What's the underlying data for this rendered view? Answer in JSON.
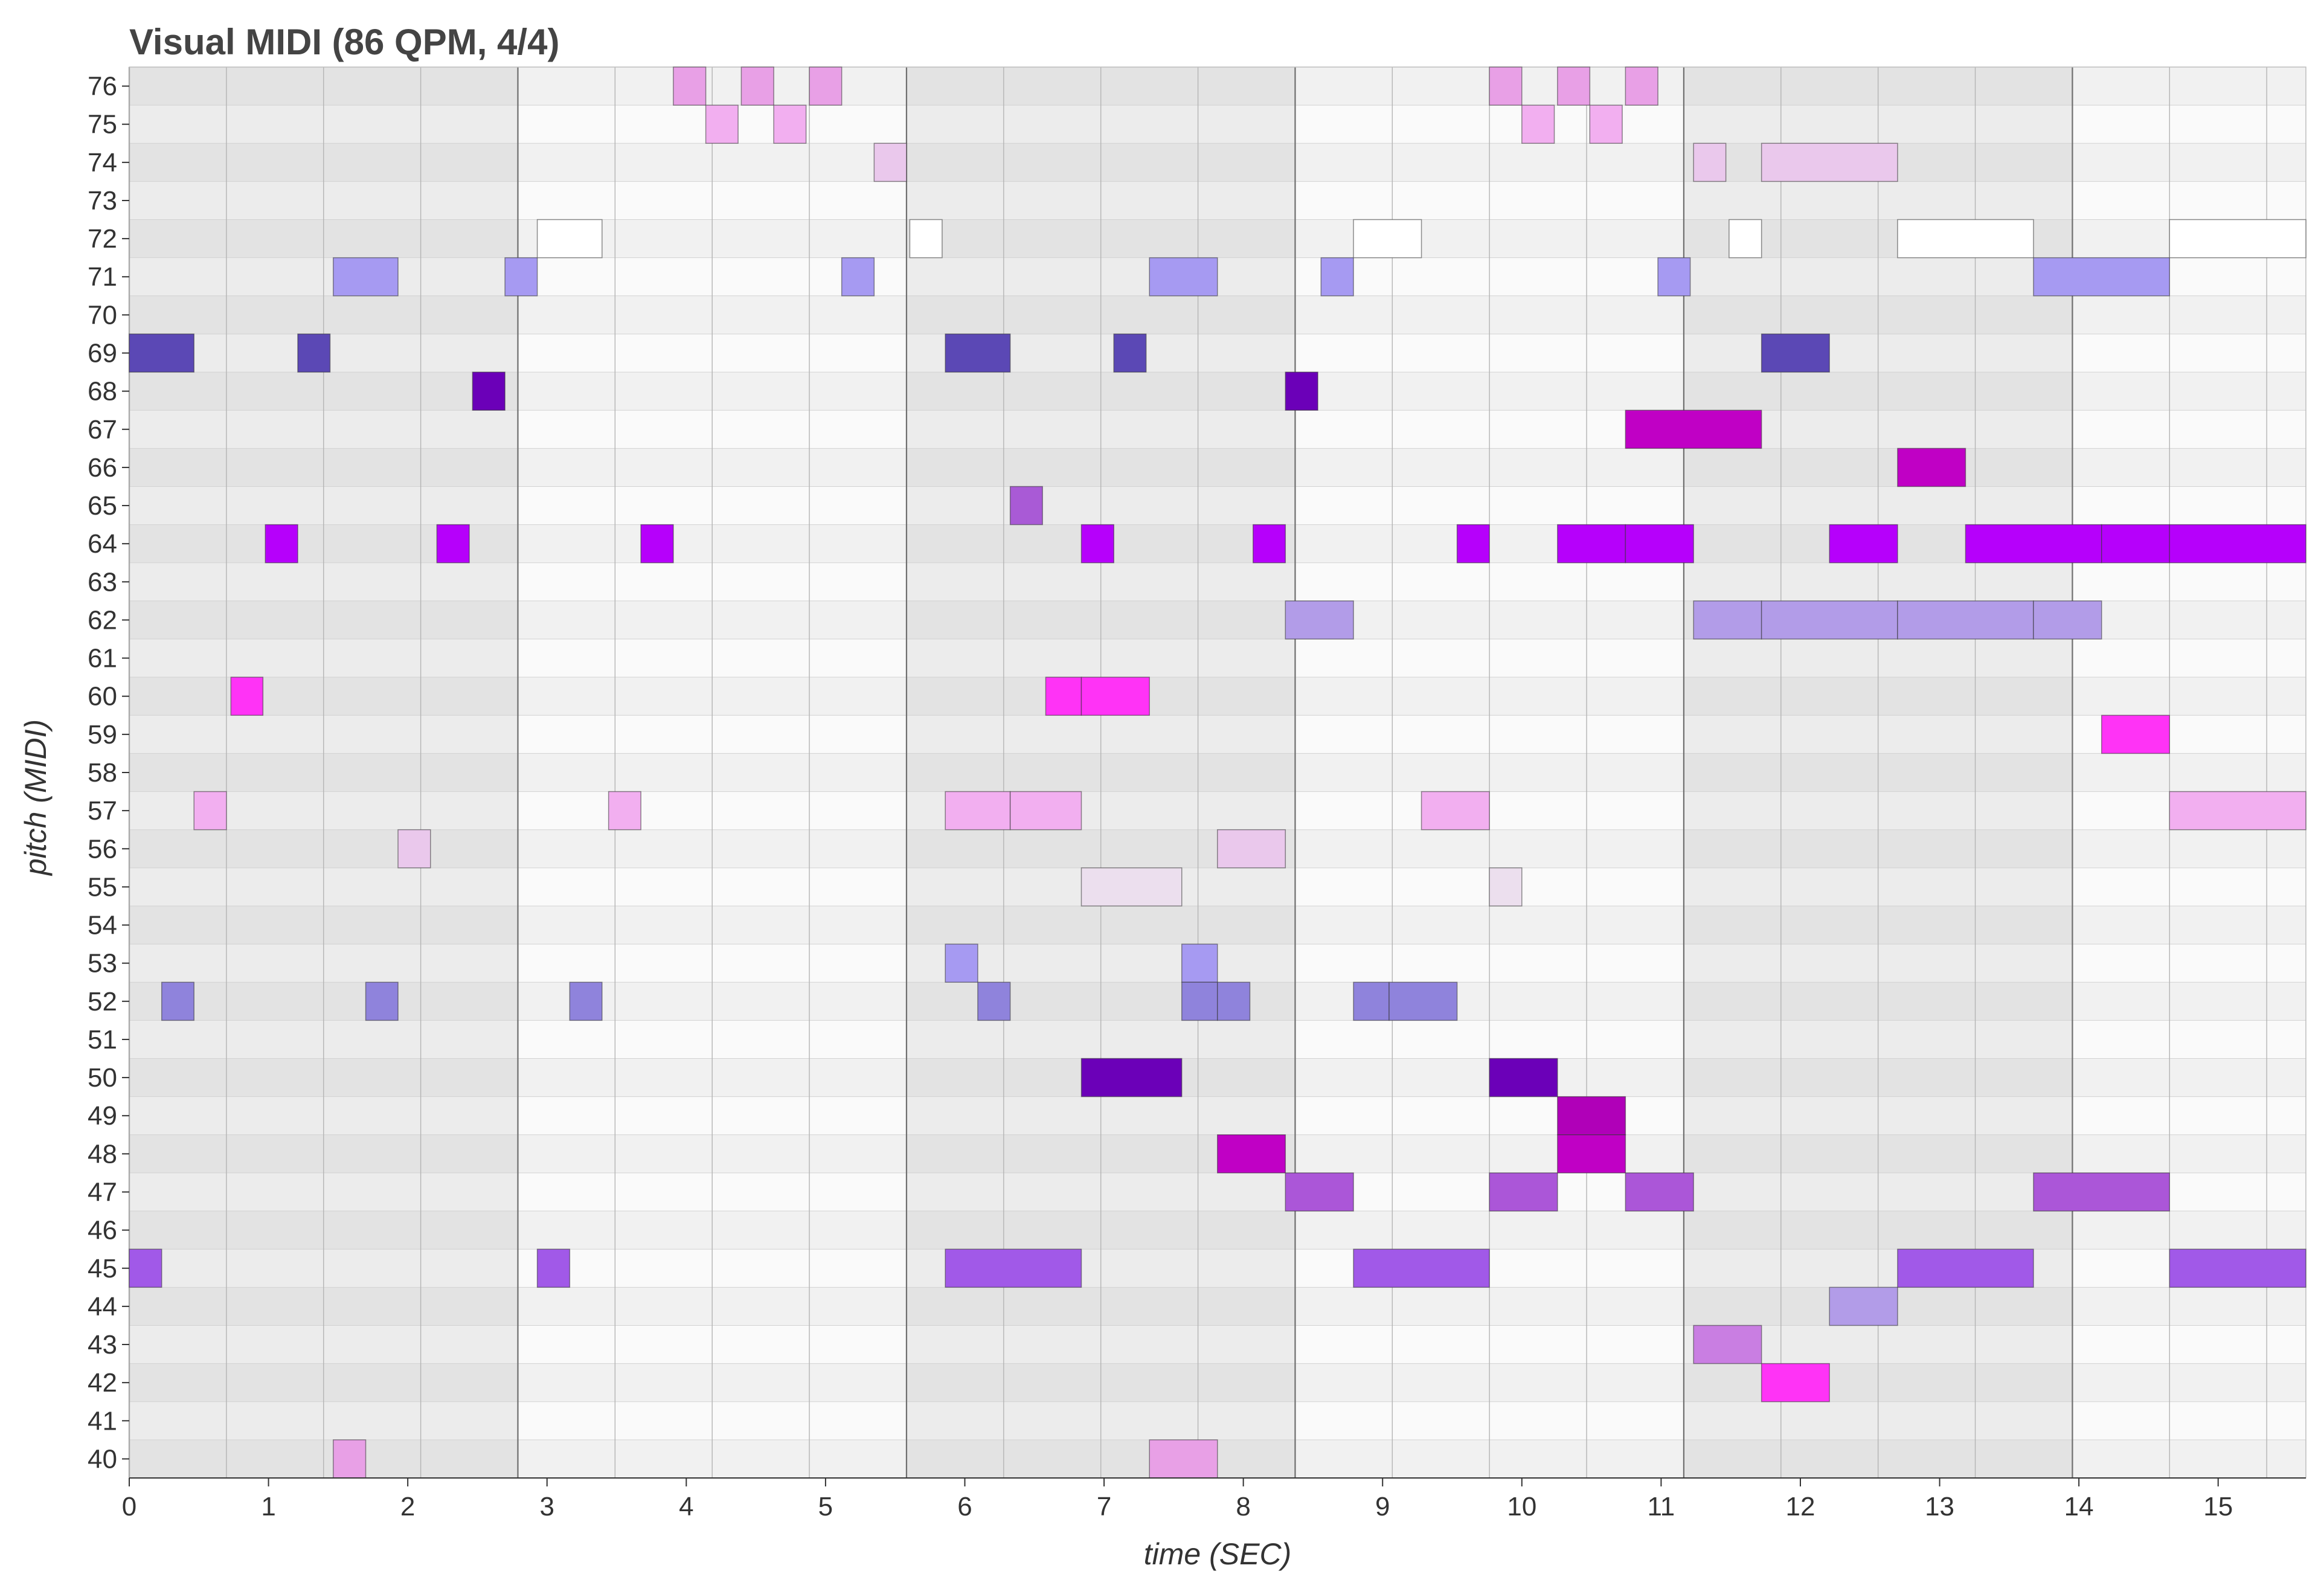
{
  "chart_data": {
    "type": "piano-roll",
    "title": "Visual MIDI (86 QPM, 4/4)",
    "xlabel": "time (SEC)",
    "ylabel": "pitch (MIDI)",
    "xlim": [
      0,
      15.63
    ],
    "ylim": [
      40,
      76
    ],
    "bar_length_sec": 2.7907,
    "x_ticks": [
      0,
      1,
      2,
      3,
      4,
      5,
      6,
      7,
      8,
      9,
      10,
      11,
      12,
      13,
      14,
      15
    ],
    "y_ticks": [
      40,
      41,
      42,
      43,
      44,
      45,
      46,
      47,
      48,
      49,
      50,
      51,
      52,
      53,
      54,
      55,
      56,
      57,
      58,
      59,
      60,
      61,
      62,
      63,
      64,
      65,
      66,
      67,
      68,
      69,
      70,
      71,
      72,
      73,
      74,
      75,
      76
    ],
    "notes": [
      {
        "pitch": 69,
        "start": 0.0,
        "end": 0.465,
        "color": "#5b48b5"
      },
      {
        "pitch": 45,
        "start": 0.0,
        "end": 0.233,
        "color": "#a159e8"
      },
      {
        "pitch": 52,
        "start": 0.233,
        "end": 0.465,
        "color": "#8f83dc"
      },
      {
        "pitch": 57,
        "start": 0.465,
        "end": 0.698,
        "color": "#f2aff0"
      },
      {
        "pitch": 60,
        "start": 0.73,
        "end": 0.96,
        "color": "#ff33f6"
      },
      {
        "pitch": 64,
        "start": 0.977,
        "end": 1.21,
        "color": "#b600fb"
      },
      {
        "pitch": 69,
        "start": 1.21,
        "end": 1.442,
        "color": "#5b48b5"
      },
      {
        "pitch": 71,
        "start": 1.465,
        "end": 1.93,
        "color": "#a69af2"
      },
      {
        "pitch": 40,
        "start": 1.465,
        "end": 1.698,
        "color": "#e8a0e6"
      },
      {
        "pitch": 52,
        "start": 1.698,
        "end": 1.93,
        "color": "#8f83dc"
      },
      {
        "pitch": 56,
        "start": 1.93,
        "end": 2.163,
        "color": "#eac8ec"
      },
      {
        "pitch": 64,
        "start": 2.209,
        "end": 2.442,
        "color": "#b600fb"
      },
      {
        "pitch": 68,
        "start": 2.465,
        "end": 2.698,
        "color": "#6b00b8"
      },
      {
        "pitch": 71,
        "start": 2.698,
        "end": 2.93,
        "color": "#a69af2"
      },
      {
        "pitch": 72,
        "start": 2.93,
        "end": 3.395,
        "color": "#ffffff"
      },
      {
        "pitch": 45,
        "start": 2.93,
        "end": 3.163,
        "color": "#a159e8"
      },
      {
        "pitch": 52,
        "start": 3.163,
        "end": 3.395,
        "color": "#8f83dc"
      },
      {
        "pitch": 57,
        "start": 3.442,
        "end": 3.674,
        "color": "#f2aff0"
      },
      {
        "pitch": 64,
        "start": 3.674,
        "end": 3.907,
        "color": "#b600fb"
      },
      {
        "pitch": 76,
        "start": 3.907,
        "end": 4.14,
        "color": "#e8a0e6"
      },
      {
        "pitch": 75,
        "start": 4.14,
        "end": 4.372,
        "color": "#f2aff0"
      },
      {
        "pitch": 76,
        "start": 4.395,
        "end": 4.628,
        "color": "#e8a0e6"
      },
      {
        "pitch": 75,
        "start": 4.628,
        "end": 4.86,
        "color": "#f2aff0"
      },
      {
        "pitch": 76,
        "start": 4.884,
        "end": 5.116,
        "color": "#e8a0e6"
      },
      {
        "pitch": 71,
        "start": 5.116,
        "end": 5.349,
        "color": "#a69af2"
      },
      {
        "pitch": 74,
        "start": 5.349,
        "end": 5.581,
        "color": "#eac8ec"
      },
      {
        "pitch": 72,
        "start": 5.605,
        "end": 5.837,
        "color": "#ffffff"
      },
      {
        "pitch": 69,
        "start": 5.86,
        "end": 6.326,
        "color": "#5b48b5"
      },
      {
        "pitch": 57,
        "start": 5.86,
        "end": 6.326,
        "color": "#f2aff0"
      },
      {
        "pitch": 53,
        "start": 5.86,
        "end": 6.093,
        "color": "#a69af2"
      },
      {
        "pitch": 45,
        "start": 5.86,
        "end": 6.837,
        "color": "#a159e8"
      },
      {
        "pitch": 52,
        "start": 6.093,
        "end": 6.326,
        "color": "#8f83dc"
      },
      {
        "pitch": 57,
        "start": 6.326,
        "end": 6.837,
        "color": "#f2aff0"
      },
      {
        "pitch": 65,
        "start": 6.326,
        "end": 6.558,
        "color": "#a95ad6"
      },
      {
        "pitch": 60,
        "start": 6.581,
        "end": 6.837,
        "color": "#ff33f6"
      },
      {
        "pitch": 64,
        "start": 6.837,
        "end": 7.07,
        "color": "#b600fb"
      },
      {
        "pitch": 60,
        "start": 6.837,
        "end": 7.326,
        "color": "#ff33f6"
      },
      {
        "pitch": 55,
        "start": 6.837,
        "end": 7.558,
        "color": "#ecdfee"
      },
      {
        "pitch": 50,
        "start": 6.837,
        "end": 7.558,
        "color": "#6b00b8"
      },
      {
        "pitch": 69,
        "start": 7.07,
        "end": 7.302,
        "color": "#5b48b5"
      },
      {
        "pitch": 71,
        "start": 7.326,
        "end": 7.814,
        "color": "#a69af2"
      },
      {
        "pitch": 40,
        "start": 7.326,
        "end": 7.814,
        "color": "#e8a0e6"
      },
      {
        "pitch": 53,
        "start": 7.558,
        "end": 7.814,
        "color": "#a69af2"
      },
      {
        "pitch": 52,
        "start": 7.558,
        "end": 7.814,
        "color": "#8f83dc"
      },
      {
        "pitch": 52,
        "start": 7.814,
        "end": 8.047,
        "color": "#8f83dc"
      },
      {
        "pitch": 56,
        "start": 7.814,
        "end": 8.302,
        "color": "#eac8ec"
      },
      {
        "pitch": 48,
        "start": 7.814,
        "end": 8.302,
        "color": "#c000c5"
      },
      {
        "pitch": 64,
        "start": 8.07,
        "end": 8.302,
        "color": "#b600fb"
      },
      {
        "pitch": 68,
        "start": 8.302,
        "end": 8.535,
        "color": "#6b00b8"
      },
      {
        "pitch": 62,
        "start": 8.302,
        "end": 8.791,
        "color": "#b29ce8"
      },
      {
        "pitch": 47,
        "start": 8.302,
        "end": 8.791,
        "color": "#ab56d8"
      },
      {
        "pitch": 71,
        "start": 8.558,
        "end": 8.791,
        "color": "#a69af2"
      },
      {
        "pitch": 72,
        "start": 8.791,
        "end": 9.279,
        "color": "#ffffff"
      },
      {
        "pitch": 52,
        "start": 8.791,
        "end": 9.047,
        "color": "#8f83dc"
      },
      {
        "pitch": 45,
        "start": 8.791,
        "end": 9.767,
        "color": "#a159e8"
      },
      {
        "pitch": 52,
        "start": 9.047,
        "end": 9.535,
        "color": "#8f83dc"
      },
      {
        "pitch": 57,
        "start": 9.279,
        "end": 9.767,
        "color": "#f2aff0"
      },
      {
        "pitch": 64,
        "start": 9.535,
        "end": 9.767,
        "color": "#b600fb"
      },
      {
        "pitch": 76,
        "start": 9.767,
        "end": 10.0,
        "color": "#e8a0e6"
      },
      {
        "pitch": 55,
        "start": 9.767,
        "end": 10.0,
        "color": "#ecdfee"
      },
      {
        "pitch": 50,
        "start": 9.767,
        "end": 10.256,
        "color": "#6b00b8"
      },
      {
        "pitch": 47,
        "start": 9.767,
        "end": 10.256,
        "color": "#ab56d8"
      },
      {
        "pitch": 75,
        "start": 10.0,
        "end": 10.233,
        "color": "#f2aff0"
      },
      {
        "pitch": 76,
        "start": 10.256,
        "end": 10.488,
        "color": "#e8a0e6"
      },
      {
        "pitch": 64,
        "start": 10.256,
        "end": 10.744,
        "color": "#b600fb"
      },
      {
        "pitch": 49,
        "start": 10.256,
        "end": 10.744,
        "color": "#b000b8"
      },
      {
        "pitch": 48,
        "start": 10.256,
        "end": 10.744,
        "color": "#c000c5"
      },
      {
        "pitch": 75,
        "start": 10.488,
        "end": 10.721,
        "color": "#f2aff0"
      },
      {
        "pitch": 76,
        "start": 10.744,
        "end": 10.977,
        "color": "#e8a0e6"
      },
      {
        "pitch": 67,
        "start": 10.744,
        "end": 11.721,
        "color": "#c000c5"
      },
      {
        "pitch": 64,
        "start": 10.744,
        "end": 11.233,
        "color": "#b600fb"
      },
      {
        "pitch": 47,
        "start": 10.744,
        "end": 11.233,
        "color": "#ab56d8"
      },
      {
        "pitch": 71,
        "start": 10.977,
        "end": 11.209,
        "color": "#a69af2"
      },
      {
        "pitch": 74,
        "start": 11.233,
        "end": 11.465,
        "color": "#eac8ec"
      },
      {
        "pitch": 62,
        "start": 11.233,
        "end": 11.721,
        "color": "#b29ce8"
      },
      {
        "pitch": 43,
        "start": 11.233,
        "end": 11.721,
        "color": "#c97ee2"
      },
      {
        "pitch": 72,
        "start": 11.488,
        "end": 11.721,
        "color": "#ffffff"
      },
      {
        "pitch": 74,
        "start": 11.721,
        "end": 12.698,
        "color": "#eac8ec"
      },
      {
        "pitch": 69,
        "start": 11.721,
        "end": 12.209,
        "color": "#5b48b5"
      },
      {
        "pitch": 62,
        "start": 11.721,
        "end": 12.698,
        "color": "#b29ce8"
      },
      {
        "pitch": 42,
        "start": 11.721,
        "end": 12.209,
        "color": "#ff33f6"
      },
      {
        "pitch": 64,
        "start": 12.209,
        "end": 12.698,
        "color": "#b600fb"
      },
      {
        "pitch": 44,
        "start": 12.209,
        "end": 12.698,
        "color": "#b29ce8"
      },
      {
        "pitch": 72,
        "start": 12.698,
        "end": 13.674,
        "color": "#ffffff"
      },
      {
        "pitch": 66,
        "start": 12.698,
        "end": 13.186,
        "color": "#c000c5"
      },
      {
        "pitch": 62,
        "start": 12.698,
        "end": 13.674,
        "color": "#b29ce8"
      },
      {
        "pitch": 45,
        "start": 12.698,
        "end": 13.674,
        "color": "#a159e8"
      },
      {
        "pitch": 64,
        "start": 13.186,
        "end": 14.163,
        "color": "#b600fb"
      },
      {
        "pitch": 71,
        "start": 13.674,
        "end": 14.651,
        "color": "#a69af2"
      },
      {
        "pitch": 62,
        "start": 13.674,
        "end": 14.163,
        "color": "#b29ce8"
      },
      {
        "pitch": 47,
        "start": 13.674,
        "end": 14.651,
        "color": "#ab56d8"
      },
      {
        "pitch": 64,
        "start": 14.163,
        "end": 14.651,
        "color": "#b600fb"
      },
      {
        "pitch": 59,
        "start": 14.163,
        "end": 14.651,
        "color": "#ff33f6"
      },
      {
        "pitch": 72,
        "start": 14.651,
        "end": 15.63,
        "color": "#ffffff"
      },
      {
        "pitch": 64,
        "start": 14.651,
        "end": 15.63,
        "color": "#b600fb"
      },
      {
        "pitch": 57,
        "start": 14.651,
        "end": 15.63,
        "color": "#f2aff0"
      },
      {
        "pitch": 45,
        "start": 14.651,
        "end": 15.63,
        "color": "#a159e8"
      }
    ]
  }
}
